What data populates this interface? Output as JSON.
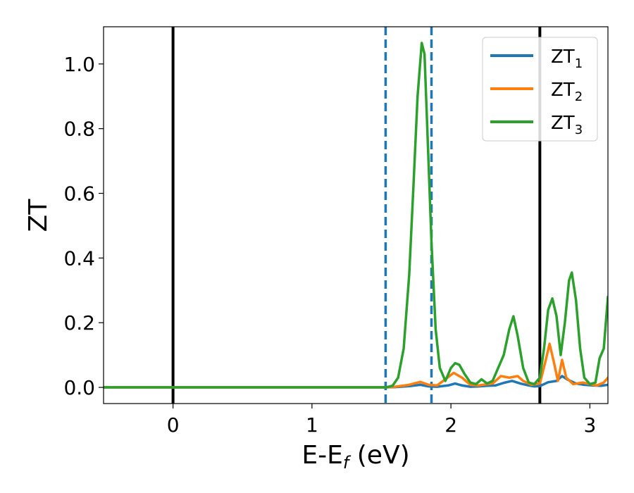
{
  "chart_data": {
    "type": "line",
    "xlabel_main": "E-E",
    "xlabel_sub": "f",
    "xlabel_unit": " (eV)",
    "ylabel": "ZT",
    "xlim": [
      -0.5,
      3.13
    ],
    "ylim": [
      -0.05,
      1.115
    ],
    "xticks": [
      0,
      1,
      2,
      3
    ],
    "xtick_labels": [
      "0",
      "1",
      "2",
      "3"
    ],
    "yticks": [
      0.0,
      0.2,
      0.4,
      0.6,
      0.8,
      1.0
    ],
    "ytick_labels": [
      "0.0",
      "0.2",
      "0.4",
      "0.6",
      "0.8",
      "1.0"
    ],
    "vertical_lines": [
      {
        "x": 0.0,
        "style": "solid",
        "color": "#000000"
      },
      {
        "x": 1.53,
        "style": "dashed",
        "color": "#1f77b4"
      },
      {
        "x": 1.86,
        "style": "dashed",
        "color": "#1f77b4"
      },
      {
        "x": 2.64,
        "style": "solid",
        "color": "#000000"
      }
    ],
    "legend_position": "top-right",
    "series": [
      {
        "name": "ZT",
        "sub": "1",
        "color": "#1f77b4",
        "points": [
          [
            -0.5,
            0.0
          ],
          [
            1.53,
            0.0
          ],
          [
            1.6,
            0.001
          ],
          [
            1.7,
            0.004
          ],
          [
            1.78,
            0.008
          ],
          [
            1.84,
            0.003
          ],
          [
            1.9,
            0.002
          ],
          [
            1.98,
            0.006
          ],
          [
            2.03,
            0.012
          ],
          [
            2.08,
            0.006
          ],
          [
            2.14,
            0.002
          ],
          [
            2.2,
            0.003
          ],
          [
            2.26,
            0.005
          ],
          [
            2.32,
            0.006
          ],
          [
            2.38,
            0.014
          ],
          [
            2.44,
            0.02
          ],
          [
            2.5,
            0.012
          ],
          [
            2.56,
            0.006
          ],
          [
            2.6,
            0.003
          ],
          [
            2.64,
            0.004
          ],
          [
            2.7,
            0.016
          ],
          [
            2.76,
            0.02
          ],
          [
            2.8,
            0.035
          ],
          [
            2.84,
            0.024
          ],
          [
            2.9,
            0.012
          ],
          [
            2.96,
            0.008
          ],
          [
            3.02,
            0.006
          ],
          [
            3.08,
            0.005
          ],
          [
            3.13,
            0.008
          ]
        ]
      },
      {
        "name": "ZT",
        "sub": "2",
        "color": "#ff7f0e",
        "points": [
          [
            -0.5,
            0.0
          ],
          [
            1.53,
            0.0
          ],
          [
            1.6,
            0.002
          ],
          [
            1.7,
            0.008
          ],
          [
            1.78,
            0.017
          ],
          [
            1.84,
            0.008
          ],
          [
            1.9,
            0.006
          ],
          [
            1.96,
            0.025
          ],
          [
            2.02,
            0.045
          ],
          [
            2.08,
            0.03
          ],
          [
            2.14,
            0.008
          ],
          [
            2.2,
            0.006
          ],
          [
            2.26,
            0.01
          ],
          [
            2.3,
            0.012
          ],
          [
            2.36,
            0.035
          ],
          [
            2.42,
            0.03
          ],
          [
            2.48,
            0.035
          ],
          [
            2.52,
            0.02
          ],
          [
            2.58,
            0.008
          ],
          [
            2.64,
            0.012
          ],
          [
            2.68,
            0.08
          ],
          [
            2.71,
            0.135
          ],
          [
            2.74,
            0.08
          ],
          [
            2.77,
            0.02
          ],
          [
            2.8,
            0.085
          ],
          [
            2.83,
            0.03
          ],
          [
            2.88,
            0.01
          ],
          [
            2.95,
            0.015
          ],
          [
            3.0,
            0.01
          ],
          [
            3.05,
            0.006
          ],
          [
            3.1,
            0.015
          ],
          [
            3.13,
            0.03
          ]
        ]
      },
      {
        "name": "ZT",
        "sub": "3",
        "color": "#2ca02c",
        "points": [
          [
            -0.5,
            0.0
          ],
          [
            1.53,
            0.0
          ],
          [
            1.58,
            0.005
          ],
          [
            1.62,
            0.03
          ],
          [
            1.66,
            0.12
          ],
          [
            1.7,
            0.35
          ],
          [
            1.73,
            0.62
          ],
          [
            1.76,
            0.9
          ],
          [
            1.79,
            1.065
          ],
          [
            1.81,
            1.03
          ],
          [
            1.83,
            0.8
          ],
          [
            1.86,
            0.45
          ],
          [
            1.89,
            0.18
          ],
          [
            1.92,
            0.06
          ],
          [
            1.96,
            0.02
          ],
          [
            2.0,
            0.06
          ],
          [
            2.03,
            0.075
          ],
          [
            2.06,
            0.07
          ],
          [
            2.1,
            0.04
          ],
          [
            2.14,
            0.015
          ],
          [
            2.18,
            0.01
          ],
          [
            2.22,
            0.025
          ],
          [
            2.26,
            0.012
          ],
          [
            2.3,
            0.02
          ],
          [
            2.34,
            0.06
          ],
          [
            2.38,
            0.1
          ],
          [
            2.42,
            0.18
          ],
          [
            2.45,
            0.22
          ],
          [
            2.48,
            0.16
          ],
          [
            2.52,
            0.06
          ],
          [
            2.56,
            0.015
          ],
          [
            2.6,
            0.01
          ],
          [
            2.64,
            0.03
          ],
          [
            2.67,
            0.12
          ],
          [
            2.7,
            0.24
          ],
          [
            2.73,
            0.275
          ],
          [
            2.76,
            0.22
          ],
          [
            2.79,
            0.1
          ],
          [
            2.82,
            0.2
          ],
          [
            2.85,
            0.33
          ],
          [
            2.87,
            0.355
          ],
          [
            2.9,
            0.27
          ],
          [
            2.93,
            0.12
          ],
          [
            2.96,
            0.03
          ],
          [
            3.0,
            0.01
          ],
          [
            3.04,
            0.015
          ],
          [
            3.07,
            0.09
          ],
          [
            3.1,
            0.12
          ],
          [
            3.13,
            0.28
          ]
        ]
      }
    ]
  }
}
